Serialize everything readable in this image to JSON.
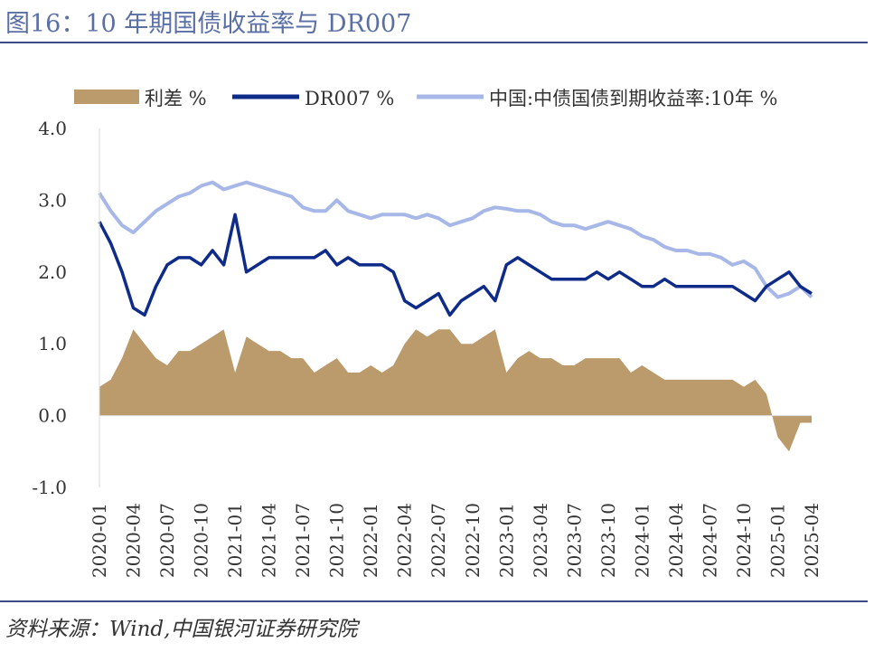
{
  "figure": {
    "title": "图16：10 年期国债收益率与 DR007",
    "source": "资料来源：Wind,中国银河证券研究院"
  },
  "colors": {
    "spread": "#bb9a6c",
    "dr007": "#0e2b8a",
    "bond10y": "#a7b8e8",
    "title": "#5a6fa6",
    "rule": "#3a4a82"
  },
  "chart_data": {
    "type": "line",
    "legend_position": "top",
    "grid": false,
    "ylim": [
      -1.0,
      4.0
    ],
    "yticks": [
      "-1.0",
      "0.0",
      "1.0",
      "2.0",
      "3.0",
      "4.0"
    ],
    "xlim": [
      "2020-01",
      "2025-04"
    ],
    "xticks": [
      "2020-01",
      "2020-04",
      "2020-07",
      "2020-10",
      "2021-01",
      "2021-04",
      "2021-07",
      "2021-10",
      "2022-01",
      "2022-04",
      "2022-07",
      "2022-10",
      "2023-01",
      "2023-04",
      "2023-07",
      "2023-10",
      "2024-01",
      "2024-04",
      "2024-07",
      "2024-10",
      "2025-01",
      "2025-04"
    ],
    "series": [
      {
        "name": "利差 %",
        "kind": "area",
        "x": [
          "2020-01",
          "2020-02",
          "2020-03",
          "2020-04",
          "2020-05",
          "2020-06",
          "2020-07",
          "2020-08",
          "2020-09",
          "2020-10",
          "2020-11",
          "2020-12",
          "2021-01",
          "2021-02",
          "2021-03",
          "2021-04",
          "2021-05",
          "2021-06",
          "2021-07",
          "2021-08",
          "2021-09",
          "2021-10",
          "2021-11",
          "2021-12",
          "2022-01",
          "2022-02",
          "2022-03",
          "2022-04",
          "2022-05",
          "2022-06",
          "2022-07",
          "2022-08",
          "2022-09",
          "2022-10",
          "2022-11",
          "2022-12",
          "2023-01",
          "2023-02",
          "2023-03",
          "2023-04",
          "2023-05",
          "2023-06",
          "2023-07",
          "2023-08",
          "2023-09",
          "2023-10",
          "2023-11",
          "2023-12",
          "2024-01",
          "2024-02",
          "2024-03",
          "2024-04",
          "2024-05",
          "2024-06",
          "2024-07",
          "2024-08",
          "2024-09",
          "2024-10",
          "2024-11",
          "2024-12",
          "2025-01",
          "2025-02",
          "2025-03",
          "2025-04"
        ],
        "values": [
          0.4,
          0.5,
          0.8,
          1.2,
          1.0,
          0.8,
          0.7,
          0.9,
          0.9,
          1.0,
          1.1,
          1.2,
          0.6,
          1.1,
          1.0,
          0.9,
          0.9,
          0.8,
          0.8,
          0.6,
          0.7,
          0.8,
          0.6,
          0.6,
          0.7,
          0.6,
          0.7,
          1.0,
          1.2,
          1.1,
          1.2,
          1.2,
          1.0,
          1.0,
          1.1,
          1.2,
          0.6,
          0.8,
          0.9,
          0.8,
          0.8,
          0.7,
          0.7,
          0.8,
          0.8,
          0.8,
          0.8,
          0.6,
          0.7,
          0.6,
          0.5,
          0.5,
          0.5,
          0.5,
          0.5,
          0.5,
          0.5,
          0.4,
          0.5,
          0.3,
          -0.3,
          -0.5,
          -0.1,
          -0.1
        ]
      },
      {
        "name": "DR007 %",
        "kind": "line",
        "x": [
          "2020-01",
          "2020-02",
          "2020-03",
          "2020-04",
          "2020-05",
          "2020-06",
          "2020-07",
          "2020-08",
          "2020-09",
          "2020-10",
          "2020-11",
          "2020-12",
          "2021-01",
          "2021-02",
          "2021-03",
          "2021-04",
          "2021-05",
          "2021-06",
          "2021-07",
          "2021-08",
          "2021-09",
          "2021-10",
          "2021-11",
          "2021-12",
          "2022-01",
          "2022-02",
          "2022-03",
          "2022-04",
          "2022-05",
          "2022-06",
          "2022-07",
          "2022-08",
          "2022-09",
          "2022-10",
          "2022-11",
          "2022-12",
          "2023-01",
          "2023-02",
          "2023-03",
          "2023-04",
          "2023-05",
          "2023-06",
          "2023-07",
          "2023-08",
          "2023-09",
          "2023-10",
          "2023-11",
          "2023-12",
          "2024-01",
          "2024-02",
          "2024-03",
          "2024-04",
          "2024-05",
          "2024-06",
          "2024-07",
          "2024-08",
          "2024-09",
          "2024-10",
          "2024-11",
          "2024-12",
          "2025-01",
          "2025-02",
          "2025-03",
          "2025-04"
        ],
        "values": [
          2.7,
          2.4,
          2.0,
          1.5,
          1.4,
          1.8,
          2.1,
          2.2,
          2.2,
          2.1,
          2.3,
          2.1,
          2.8,
          2.0,
          2.1,
          2.2,
          2.2,
          2.2,
          2.2,
          2.2,
          2.3,
          2.1,
          2.2,
          2.1,
          2.1,
          2.1,
          2.0,
          1.6,
          1.5,
          1.6,
          1.7,
          1.4,
          1.6,
          1.7,
          1.8,
          1.6,
          2.1,
          2.2,
          2.1,
          2.0,
          1.9,
          1.9,
          1.9,
          1.9,
          2.0,
          1.9,
          2.0,
          1.9,
          1.8,
          1.8,
          1.9,
          1.8,
          1.8,
          1.8,
          1.8,
          1.8,
          1.8,
          1.7,
          1.6,
          1.8,
          1.9,
          2.0,
          1.8,
          1.7
        ]
      },
      {
        "name": "中国:中债国债到期收益率:10年 %",
        "kind": "line",
        "x": [
          "2020-01",
          "2020-02",
          "2020-03",
          "2020-04",
          "2020-05",
          "2020-06",
          "2020-07",
          "2020-08",
          "2020-09",
          "2020-10",
          "2020-11",
          "2020-12",
          "2021-01",
          "2021-02",
          "2021-03",
          "2021-04",
          "2021-05",
          "2021-06",
          "2021-07",
          "2021-08",
          "2021-09",
          "2021-10",
          "2021-11",
          "2021-12",
          "2022-01",
          "2022-02",
          "2022-03",
          "2022-04",
          "2022-05",
          "2022-06",
          "2022-07",
          "2022-08",
          "2022-09",
          "2022-10",
          "2022-11",
          "2022-12",
          "2023-01",
          "2023-02",
          "2023-03",
          "2023-04",
          "2023-05",
          "2023-06",
          "2023-07",
          "2023-08",
          "2023-09",
          "2023-10",
          "2023-11",
          "2023-12",
          "2024-01",
          "2024-02",
          "2024-03",
          "2024-04",
          "2024-05",
          "2024-06",
          "2024-07",
          "2024-08",
          "2024-09",
          "2024-10",
          "2024-11",
          "2024-12",
          "2025-01",
          "2025-02",
          "2025-03",
          "2025-04"
        ],
        "values": [
          3.1,
          2.85,
          2.65,
          2.55,
          2.7,
          2.85,
          2.95,
          3.05,
          3.1,
          3.2,
          3.25,
          3.15,
          3.2,
          3.25,
          3.2,
          3.15,
          3.1,
          3.05,
          2.9,
          2.85,
          2.85,
          3.0,
          2.85,
          2.8,
          2.75,
          2.8,
          2.8,
          2.8,
          2.75,
          2.8,
          2.75,
          2.65,
          2.7,
          2.75,
          2.85,
          2.9,
          2.88,
          2.85,
          2.85,
          2.8,
          2.7,
          2.65,
          2.65,
          2.6,
          2.65,
          2.7,
          2.65,
          2.6,
          2.5,
          2.45,
          2.35,
          2.3,
          2.3,
          2.25,
          2.25,
          2.2,
          2.1,
          2.15,
          2.05,
          1.8,
          1.65,
          1.7,
          1.8,
          1.65
        ]
      }
    ]
  }
}
